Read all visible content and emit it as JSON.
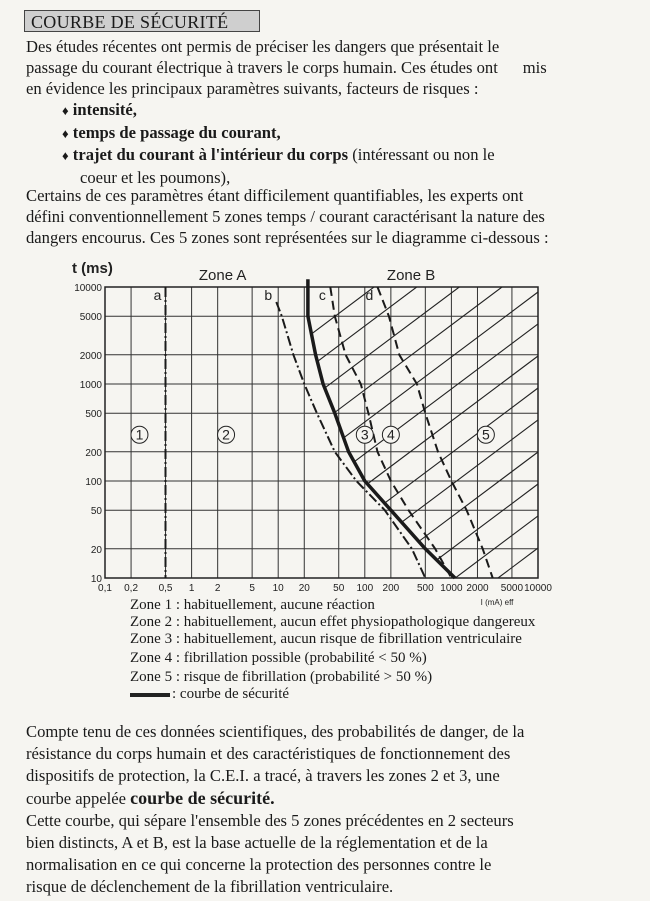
{
  "title": "COURBE DE SÉCURITÉ",
  "intro": [
    "Des études récentes ont permis de préciser les dangers que présentait le",
    "passage du courant électrique à travers le corps humain. Ces études ont      mis",
    "en évidence les principaux paramètres suivants, facteurs de risques :"
  ],
  "bullets": [
    {
      "bold": "intensité,",
      "rest": ""
    },
    {
      "bold": "temps de passage du courant,",
      "rest": ""
    },
    {
      "bold": "trajet du courant à l'intérieur du corps",
      "rest": " (intéressant ou non le",
      "cont": "coeur et les poumons),"
    }
  ],
  "bullet_glyph": "♦",
  "para2": [
    "Certains de ces paramètres étant difficilement quantifiables, les experts ont",
    "défini conventionnellement 5 zones temps / courant caractérisant la nature des",
    "dangers encourus. Ces 5 zones sont représentées sur le diagramme ci-dessous :"
  ],
  "chart_data": {
    "type": "line",
    "xlabel": "I (mA) eff",
    "ylabel": "t (ms)",
    "xscale": "log",
    "yscale": "log",
    "xlim": [
      0.1,
      10000
    ],
    "ylim": [
      10,
      10000
    ],
    "grid": true,
    "x_ticks": [
      "0,1",
      "0,2",
      "0,5",
      "1",
      "2",
      "5",
      "10",
      "20",
      "50",
      "100",
      "200",
      "500",
      "1000",
      "2000",
      "5000",
      "10000"
    ],
    "x_tick_values": [
      0.1,
      0.2,
      0.5,
      1,
      2,
      5,
      10,
      20,
      50,
      100,
      200,
      500,
      1000,
      2000,
      5000,
      10000
    ],
    "y_ticks": [
      "10000",
      "5000",
      "2000",
      "1000",
      "500",
      "200",
      "100",
      "50",
      "20",
      "10"
    ],
    "y_tick_values": [
      10000,
      5000,
      2000,
      1000,
      500,
      200,
      100,
      50,
      20,
      10
    ],
    "region_labels": [
      {
        "text": "Zone A",
        "x": 2
      },
      {
        "text": "Zone B",
        "x": 300
      }
    ],
    "zones": [
      {
        "label": "1",
        "x": 0.25,
        "y": 300
      },
      {
        "label": "2",
        "x": 2.5,
        "y": 300
      },
      {
        "label": "3",
        "x": 100,
        "y": 300
      },
      {
        "label": "4",
        "x": 200,
        "y": 300
      },
      {
        "label": "5",
        "x": 2500,
        "y": 300
      }
    ],
    "series": [
      {
        "name": "a",
        "style": "dash-dot",
        "points": [
          [
            0.5,
            10000
          ],
          [
            0.5,
            10
          ]
        ]
      },
      {
        "name": "b",
        "style": "dash-dot",
        "points": [
          [
            9.5,
            7000
          ],
          [
            11,
            5000
          ],
          [
            15,
            2000
          ],
          [
            20,
            1000
          ],
          [
            28,
            500
          ],
          [
            45,
            200
          ],
          [
            80,
            100
          ],
          [
            170,
            50
          ],
          [
            350,
            20
          ],
          [
            500,
            10
          ]
        ]
      },
      {
        "name": "courbe de sécurité",
        "style": "bold",
        "points": [
          [
            22,
            12000
          ],
          [
            22,
            5000
          ],
          [
            27,
            2000
          ],
          [
            33,
            1000
          ],
          [
            45,
            500
          ],
          [
            65,
            200
          ],
          [
            100,
            100
          ],
          [
            200,
            50
          ],
          [
            500,
            20
          ],
          [
            1100,
            10
          ]
        ]
      },
      {
        "name": "c",
        "style": "dashed",
        "points": [
          [
            40,
            10000
          ],
          [
            45,
            5000
          ],
          [
            60,
            2000
          ],
          [
            90,
            1000
          ],
          [
            110,
            500
          ],
          [
            140,
            200
          ],
          [
            200,
            100
          ],
          [
            320,
            50
          ],
          [
            650,
            20
          ],
          [
            1000,
            10
          ]
        ]
      },
      {
        "name": "d",
        "style": "dashed",
        "points": [
          [
            140,
            10000
          ],
          [
            190,
            5000
          ],
          [
            250,
            2000
          ],
          [
            400,
            1000
          ],
          [
            500,
            500
          ],
          [
            700,
            200
          ],
          [
            1000,
            100
          ],
          [
            1500,
            50
          ],
          [
            2300,
            20
          ],
          [
            3000,
            10
          ]
        ]
      }
    ],
    "hatched_region": "right of courbe de sécurité"
  },
  "legend": [
    "Zone 1 : habituellement, aucune réaction",
    "Zone 2 : habituellement, aucun effet physiopathologique dangereux",
    "Zone 3 : habituellement, aucun risque de fibrillation ventriculaire",
    "Zone 4 : fibrillation possible (probabilité < 50 %)",
    "Zone 5 : risque de fibrillation (probabilité > 50 %)",
    ": courbe de sécurité"
  ],
  "conclusion": {
    "lines": [
      "Compte tenu de ces données scientifiques, des probabilités de danger, de la",
      "résistance du corps humain et des caractéristiques de fonctionnement des",
      "dispositifs de protection, la C.E.I. a tracé, à travers les zones 2 et 3, une"
    ],
    "line4_prefix": "courbe appelée ",
    "line4_bold": "courbe de sécurité.",
    "lines2": [
      "Cette courbe, qui sépare l'ensemble des 5 zones précédentes en 2 secteurs",
      "bien distincts, A et B, est la base actuelle de la réglementation et de la",
      "normalisation en ce qui concerne la protection des personnes contre le",
      "risque de déclenchement de la fibrillation ventriculaire."
    ]
  }
}
